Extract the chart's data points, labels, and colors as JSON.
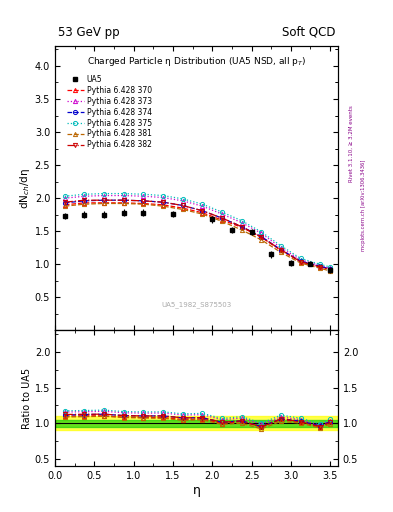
{
  "title_top_left": "53 GeV pp",
  "title_top_right": "Soft QCD",
  "plot_title": "Charged Particle η Distribution (UA5 NSD, all p_{T})",
  "ylabel_main": "dN$_{ch}$/dη",
  "ylabel_ratio": "Ratio to UA5",
  "xlabel": "η",
  "watermark": "UA5_1982_S875503",
  "right_label_top": "Rivet 3.1.10, ≥ 3.2M events",
  "right_label_bot": "mcplots.cern.ch [arXiv:1306.3436]",
  "ylim_main": [
    0,
    4.3
  ],
  "ylim_ratio": [
    0.4,
    2.3
  ],
  "yticks_main": [
    0.5,
    1.0,
    1.5,
    2.0,
    2.5,
    3.0,
    3.5,
    4.0
  ],
  "yticks_ratio": [
    0.5,
    1.0,
    1.5,
    2.0
  ],
  "xlim": [
    0,
    3.6
  ],
  "ua5_x": [
    0.125,
    0.375,
    0.625,
    0.875,
    1.125,
    1.5,
    2.0,
    2.25,
    2.5,
    2.75,
    3.0,
    3.25,
    3.5
  ],
  "ua5_y": [
    1.73,
    1.75,
    1.75,
    1.78,
    1.78,
    1.76,
    1.68,
    1.52,
    1.49,
    1.15,
    1.02,
    1.01,
    0.91
  ],
  "ua5_yerr": [
    0.05,
    0.05,
    0.05,
    0.05,
    0.05,
    0.05,
    0.05,
    0.05,
    0.05,
    0.05,
    0.04,
    0.04,
    0.04
  ],
  "pythia_x": [
    0.125,
    0.375,
    0.625,
    0.875,
    1.125,
    1.375,
    1.625,
    1.875,
    2.125,
    2.375,
    2.625,
    2.875,
    3.125,
    3.375,
    3.5
  ],
  "series": [
    {
      "label": "Pythia 6.428 370",
      "color": "#ff0000",
      "marker": "^",
      "linestyle": "--",
      "fillstyle": "none",
      "y": [
        1.9,
        1.93,
        1.93,
        1.93,
        1.92,
        1.9,
        1.85,
        1.78,
        1.67,
        1.56,
        1.41,
        1.21,
        1.04,
        0.96,
        0.93
      ]
    },
    {
      "label": "Pythia 6.428 373",
      "color": "#cc00cc",
      "marker": "^",
      "linestyle": ":",
      "fillstyle": "none",
      "y": [
        2.0,
        2.03,
        2.04,
        2.04,
        2.03,
        2.01,
        1.96,
        1.88,
        1.76,
        1.63,
        1.47,
        1.25,
        1.07,
        0.98,
        0.94
      ]
    },
    {
      "label": "Pythia 6.428 374",
      "color": "#0000cc",
      "marker": "o",
      "linestyle": "--",
      "fillstyle": "none",
      "y": [
        1.93,
        1.96,
        1.97,
        1.97,
        1.96,
        1.94,
        1.89,
        1.81,
        1.7,
        1.57,
        1.42,
        1.22,
        1.05,
        0.97,
        0.93
      ]
    },
    {
      "label": "Pythia 6.428 375",
      "color": "#00bbbb",
      "marker": "o",
      "linestyle": ":",
      "fillstyle": "none",
      "y": [
        2.03,
        2.06,
        2.07,
        2.07,
        2.06,
        2.04,
        1.99,
        1.91,
        1.79,
        1.66,
        1.49,
        1.28,
        1.09,
        1.0,
        0.96
      ]
    },
    {
      "label": "Pythia 6.428 381",
      "color": "#bb6600",
      "marker": "^",
      "linestyle": "--",
      "fillstyle": "none",
      "y": [
        1.88,
        1.91,
        1.92,
        1.92,
        1.91,
        1.88,
        1.83,
        1.76,
        1.65,
        1.52,
        1.37,
        1.18,
        1.02,
        0.94,
        0.9
      ]
    },
    {
      "label": "Pythia 6.428 382",
      "color": "#cc0000",
      "marker": "v",
      "linestyle": "-.",
      "fillstyle": "none",
      "y": [
        1.94,
        1.97,
        1.97,
        1.97,
        1.96,
        1.94,
        1.89,
        1.81,
        1.7,
        1.57,
        1.41,
        1.22,
        1.04,
        0.96,
        0.92
      ]
    }
  ],
  "ratio_band_green": 0.05,
  "ratio_band_yellow": 0.1
}
